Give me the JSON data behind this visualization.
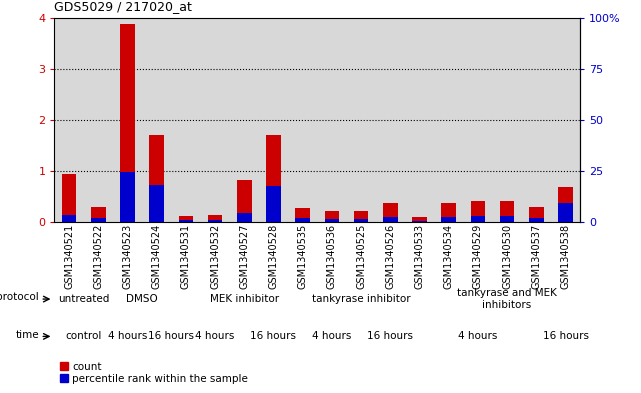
{
  "title": "GDS5029 / 217020_at",
  "samples": [
    "GSM1340521",
    "GSM1340522",
    "GSM1340523",
    "GSM1340524",
    "GSM1340531",
    "GSM1340532",
    "GSM1340527",
    "GSM1340528",
    "GSM1340535",
    "GSM1340536",
    "GSM1340525",
    "GSM1340526",
    "GSM1340533",
    "GSM1340534",
    "GSM1340529",
    "GSM1340530",
    "GSM1340537",
    "GSM1340538"
  ],
  "count_values": [
    0.95,
    0.3,
    3.88,
    1.7,
    0.12,
    0.14,
    0.82,
    1.7,
    0.28,
    0.22,
    0.22,
    0.38,
    0.1,
    0.38,
    0.42,
    0.42,
    0.3,
    0.68
  ],
  "percentile_values": [
    0.14,
    0.08,
    0.97,
    0.72,
    0.04,
    0.04,
    0.18,
    0.7,
    0.07,
    0.05,
    0.06,
    0.1,
    0.03,
    0.1,
    0.11,
    0.11,
    0.08,
    0.38
  ],
  "ylim": [
    0,
    4
  ],
  "y2lim": [
    0,
    100
  ],
  "yticks": [
    0,
    1,
    2,
    3,
    4
  ],
  "y2ticks": [
    0,
    25,
    50,
    75,
    100
  ],
  "bar_color_count": "#cc0000",
  "bar_color_pct": "#0000cc",
  "protocol_groups": [
    {
      "label": "untreated",
      "start": 0,
      "end": 1,
      "color": "#aaddaa"
    },
    {
      "label": "DMSO",
      "start": 1,
      "end": 4,
      "color": "#aaddaa"
    },
    {
      "label": "MEK inhibitor",
      "start": 4,
      "end": 8,
      "color": "#aaddaa"
    },
    {
      "label": "tankyrase inhibitor",
      "start": 8,
      "end": 12,
      "color": "#aaddaa"
    },
    {
      "label": "tankyrase and MEK\ninhibitors",
      "start": 12,
      "end": 18,
      "color": "#44cc44"
    }
  ],
  "time_groups": [
    {
      "label": "control",
      "start": 0,
      "end": 1,
      "color": "#cc88cc"
    },
    {
      "label": "4 hours",
      "start": 1,
      "end": 3,
      "color": "#dd44dd"
    },
    {
      "label": "16 hours",
      "start": 3,
      "end": 4,
      "color": "#ee88ee"
    },
    {
      "label": "4 hours",
      "start": 4,
      "end": 6,
      "color": "#dd44dd"
    },
    {
      "label": "16 hours",
      "start": 6,
      "end": 8,
      "color": "#ee88ee"
    },
    {
      "label": "4 hours",
      "start": 8,
      "end": 10,
      "color": "#dd44dd"
    },
    {
      "label": "16 hours",
      "start": 10,
      "end": 12,
      "color": "#ee88ee"
    },
    {
      "label": "4 hours",
      "start": 12,
      "end": 16,
      "color": "#dd44dd"
    },
    {
      "label": "16 hours",
      "start": 16,
      "end": 18,
      "color": "#ee88ee"
    }
  ],
  "legend_count_label": "count",
  "legend_pct_label": "percentile rank within the sample",
  "protocol_label": "protocol",
  "time_label": "time",
  "bg_color": "#ffffff",
  "col_bg_color": "#d8d8d8",
  "bar_width": 0.5
}
